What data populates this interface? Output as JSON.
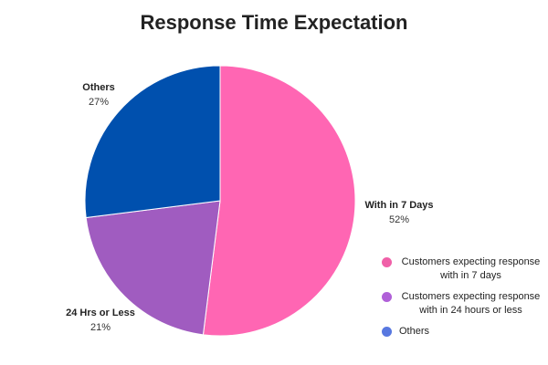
{
  "chart_data": {
    "type": "pie",
    "title": "Response Time Expectation",
    "slices": [
      {
        "label": "With in 7 Days",
        "value": 52,
        "value_label": "52%",
        "color": "#FF66B3",
        "legend": "Customers expecting response with in 7 days"
      },
      {
        "label": "24 Hrs or Less",
        "value": 21,
        "value_label": "21%",
        "color": "#A05CC0",
        "legend": "Customers expecting response with in 24 hours or less"
      },
      {
        "label": "Others",
        "value": 27,
        "value_label": "27%",
        "color": "#0050AE",
        "legend": "Others"
      }
    ],
    "legend_position": "bottom-right",
    "legend_colors": [
      "#F060A8",
      "#B060D8",
      "#5878E0"
    ]
  }
}
